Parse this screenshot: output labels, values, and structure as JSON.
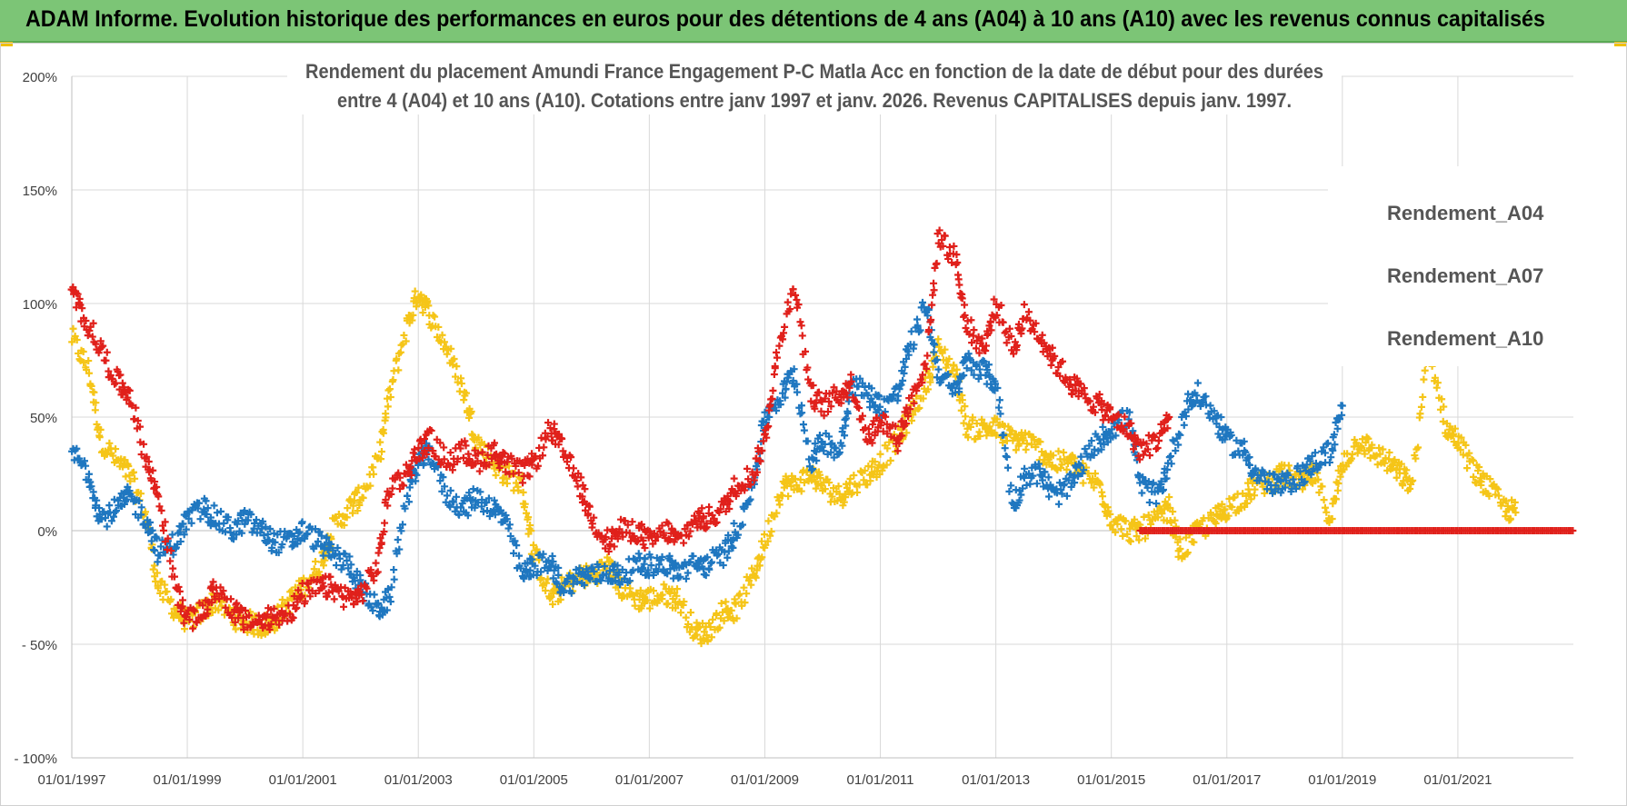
{
  "banner": {
    "title": "ADAM Informe. Evolution historique des performances en euros pour des détentions de 4 ans (A04) à 10 ans (A10) avec les revenus connus capitalisés"
  },
  "colors": {
    "banner_bg": "#7cc576",
    "a04": "#f5c518",
    "a07": "#1f77c0",
    "a10": "#e0201b",
    "grid": "#d9d9d9"
  },
  "chart_data": {
    "type": "scatter",
    "title_lines": [
      "Rendement du placement Amundi France Engagement P-C Matla Acc en fonction de la date de début pour des durées",
      "entre 4 (A04) et 10 ans (A10). Cotations entre janv 1997 et janv. 2026. Revenus CAPITALISES depuis janv. 1997."
    ],
    "xlabel": "",
    "ylabel": "",
    "xlim": [
      1997.0,
      2023.0
    ],
    "ylim": [
      -100,
      200
    ],
    "y_ticks": [
      {
        "v": 200,
        "label": "200%"
      },
      {
        "v": 150,
        "label": "150%"
      },
      {
        "v": 100,
        "label": "100%"
      },
      {
        "v": 50,
        "label": "50%"
      },
      {
        "v": 0,
        "label": "0%"
      },
      {
        "v": -50,
        "label": "- 50%"
      },
      {
        "v": -100,
        "label": "- 100%"
      }
    ],
    "x_ticks": [
      {
        "v": 1997,
        "label": "01/01/1997"
      },
      {
        "v": 1999,
        "label": "01/01/1999"
      },
      {
        "v": 2001,
        "label": "01/01/2001"
      },
      {
        "v": 2003,
        "label": "01/01/2003"
      },
      {
        "v": 2005,
        "label": "01/01/2005"
      },
      {
        "v": 2007,
        "label": "01/01/2007"
      },
      {
        "v": 2009,
        "label": "01/01/2009"
      },
      {
        "v": 2011,
        "label": "01/01/2011"
      },
      {
        "v": 2013,
        "label": "01/01/2013"
      },
      {
        "v": 2015,
        "label": "01/01/2015"
      },
      {
        "v": 2017,
        "label": "01/01/2017"
      },
      {
        "v": 2019,
        "label": "01/01/2019"
      },
      {
        "v": 2021,
        "label": "01/01/2021"
      }
    ],
    "legend_position": "right",
    "series": [
      {
        "name": "Rendement_A04",
        "color": "#f5c518",
        "x": [
          1997.0,
          1997.3,
          1997.5,
          1997.8,
          1998.0,
          1998.3,
          1998.5,
          1998.8,
          1999.0,
          1999.3,
          1999.5,
          1999.8,
          2000.0,
          2000.3,
          2000.5,
          2000.8,
          2001.0,
          2001.3,
          2001.5,
          2001.8,
          2002.0,
          2002.3,
          2002.5,
          2002.8,
          2003.0,
          2003.2,
          2003.5,
          2003.8,
          2004.0,
          2004.3,
          2004.5,
          2004.8,
          2005.0,
          2005.3,
          2005.5,
          2005.8,
          2006.0,
          2006.3,
          2006.5,
          2006.8,
          2007.0,
          2007.3,
          2007.5,
          2007.8,
          2008.0,
          2008.3,
          2008.5,
          2008.8,
          2009.0,
          2009.3,
          2009.5,
          2009.8,
          2010.0,
          2010.3,
          2010.5,
          2010.8,
          2011.0,
          2011.3,
          2011.5,
          2011.8,
          2012.0,
          2012.3,
          2012.5,
          2012.8,
          2013.0,
          2013.3,
          2013.5,
          2013.8,
          2014.0,
          2014.3,
          2014.5,
          2014.8,
          2015.0,
          2015.3,
          2015.5,
          2015.8,
          2016.0,
          2016.2,
          2016.5,
          2016.8,
          2017.0,
          2017.3,
          2017.5,
          2017.8,
          2018.0,
          2018.3,
          2018.5,
          2018.8,
          2019.0,
          2019.3,
          2019.5,
          2019.8,
          2020.0,
          2020.2,
          2020.5,
          2020.8,
          2021.0,
          2021.3,
          2021.5,
          2021.8,
          2022.0
        ],
        "y": [
          85,
          70,
          40,
          30,
          25,
          5,
          -25,
          -35,
          -40,
          -35,
          -30,
          -38,
          -40,
          -42,
          -40,
          -30,
          -25,
          -15,
          0,
          10,
          15,
          30,
          60,
          90,
          105,
          95,
          80,
          60,
          40,
          30,
          25,
          20,
          -10,
          -30,
          -25,
          -20,
          -20,
          -15,
          -25,
          -30,
          -30,
          -28,
          -30,
          -45,
          -45,
          -35,
          -35,
          -20,
          -5,
          20,
          20,
          25,
          20,
          15,
          20,
          25,
          30,
          40,
          50,
          65,
          80,
          70,
          45,
          45,
          45,
          40,
          40,
          35,
          30,
          30,
          25,
          20,
          5,
          0,
          0,
          5,
          10,
          -10,
          0,
          5,
          10,
          15,
          20,
          22,
          25,
          20,
          25,
          5,
          30,
          40,
          35,
          30,
          25,
          20,
          80,
          45,
          40,
          25,
          20,
          10,
          8
        ],
        "x_zero_range": null
      },
      {
        "name": "Rendement_A07",
        "color": "#1f77c0",
        "x": [
          1997.0,
          1997.3,
          1997.5,
          1997.8,
          1998.0,
          1998.3,
          1998.5,
          1998.8,
          1999.0,
          1999.3,
          1999.5,
          1999.8,
          2000.0,
          2000.3,
          2000.5,
          2000.8,
          2001.0,
          2001.3,
          2001.5,
          2001.8,
          2002.0,
          2002.3,
          2002.5,
          2002.8,
          2003.0,
          2003.2,
          2003.5,
          2003.8,
          2004.0,
          2004.3,
          2004.5,
          2004.8,
          2005.0,
          2005.3,
          2005.5,
          2005.8,
          2006.0,
          2006.3,
          2006.5,
          2006.8,
          2007.0,
          2007.3,
          2007.5,
          2007.8,
          2008.0,
          2008.3,
          2008.5,
          2008.8,
          2009.0,
          2009.3,
          2009.5,
          2009.8,
          2010.0,
          2010.3,
          2010.5,
          2010.8,
          2011.0,
          2011.3,
          2011.5,
          2011.8,
          2012.0,
          2012.3,
          2012.5,
          2012.8,
          2013.0,
          2013.3,
          2013.5,
          2013.8,
          2014.0,
          2014.3,
          2014.5,
          2014.8,
          2015.0,
          2015.3,
          2015.5,
          2015.8,
          2016.0,
          2016.3,
          2016.5,
          2016.8,
          2017.0,
          2017.3,
          2017.5,
          2017.8,
          2018.0,
          2018.3,
          2018.5,
          2018.8,
          2019.0
        ],
        "y": [
          35,
          25,
          5,
          10,
          15,
          5,
          -10,
          -5,
          5,
          10,
          5,
          0,
          5,
          0,
          -5,
          -5,
          0,
          -5,
          -10,
          -15,
          -25,
          -35,
          -30,
          15,
          30,
          35,
          15,
          10,
          15,
          10,
          5,
          -20,
          -15,
          -15,
          -25,
          -20,
          -20,
          -18,
          -20,
          -15,
          -15,
          -15,
          -18,
          -15,
          -15,
          -10,
          0,
          20,
          50,
          60,
          70,
          30,
          40,
          35,
          65,
          60,
          55,
          60,
          80,
          100,
          70,
          60,
          75,
          70,
          65,
          10,
          25,
          25,
          15,
          20,
          30,
          40,
          45,
          50,
          20,
          15,
          30,
          55,
          60,
          50,
          40,
          35,
          25,
          20,
          20,
          25,
          30,
          35,
          55
        ]
      },
      {
        "name": "Rendement_A10",
        "color": "#e0201b",
        "x": [
          1997.0,
          1997.2,
          1997.5,
          1997.8,
          1998.0,
          1998.3,
          1998.5,
          1998.8,
          1999.0,
          1999.3,
          1999.5,
          1999.8,
          2000.0,
          2000.3,
          2000.5,
          2000.8,
          2001.0,
          2001.3,
          2001.5,
          2001.8,
          2002.0,
          2002.3,
          2002.5,
          2002.8,
          2003.0,
          2003.2,
          2003.5,
          2003.8,
          2004.0,
          2004.3,
          2004.5,
          2004.8,
          2005.0,
          2005.3,
          2005.5,
          2005.8,
          2006.0,
          2006.3,
          2006.5,
          2006.8,
          2007.0,
          2007.3,
          2007.5,
          2007.8,
          2008.0,
          2008.3,
          2008.5,
          2008.8,
          2009.0,
          2009.2,
          2009.5,
          2009.8,
          2010.0,
          2010.3,
          2010.5,
          2010.8,
          2011.0,
          2011.3,
          2011.5,
          2011.8,
          2012.0,
          2012.3,
          2012.5,
          2012.8,
          2013.0,
          2013.3,
          2013.5,
          2013.8,
          2014.0,
          2014.3,
          2014.5,
          2014.8,
          2015.0,
          2015.3,
          2015.5,
          2015.8,
          2016.0
        ],
        "y": [
          105,
          95,
          80,
          65,
          60,
          30,
          15,
          -25,
          -40,
          -35,
          -25,
          -35,
          -40,
          -40,
          -38,
          -35,
          -28,
          -25,
          -25,
          -30,
          -28,
          -15,
          20,
          25,
          35,
          40,
          30,
          35,
          30,
          35,
          30,
          25,
          30,
          45,
          35,
          20,
          5,
          -5,
          0,
          0,
          -5,
          0,
          -5,
          5,
          5,
          10,
          20,
          25,
          40,
          75,
          110,
          60,
          55,
          60,
          65,
          40,
          50,
          40,
          55,
          75,
          130,
          120,
          90,
          80,
          100,
          80,
          95,
          85,
          75,
          65,
          60,
          55,
          50,
          45,
          35,
          40,
          50
        ],
        "zero_x_range": [
          2015.5,
          2023.0
        ]
      }
    ]
  }
}
